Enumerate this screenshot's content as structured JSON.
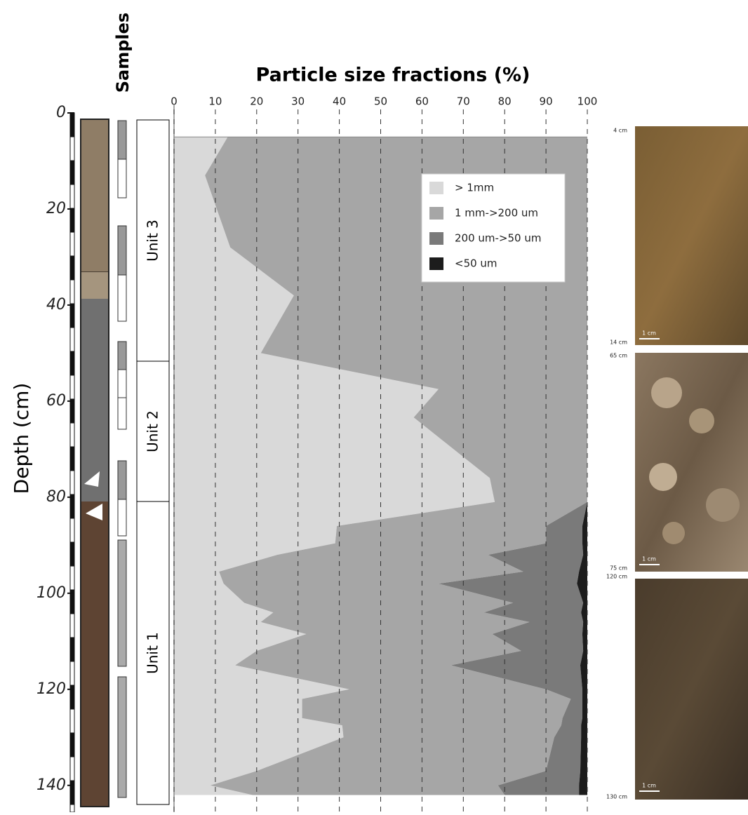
{
  "chart_data": {
    "type": "stacked_area",
    "orientation": "horizontal",
    "title": "Particle size fractions (%)",
    "x_label": "Depth (cm)",
    "samples_label": "Samples",
    "x": [
      5,
      13,
      28,
      38,
      50,
      57.5,
      63.4,
      76,
      81,
      86,
      89.6,
      92,
      95.5,
      98,
      102,
      104,
      106,
      108.5,
      112,
      115,
      120,
      122,
      126,
      127.5,
      130,
      137,
      140,
      142
    ],
    "xlim": [
      0,
      145
    ],
    "xticks": [
      0,
      20,
      40,
      60,
      80,
      100,
      120,
      140
    ],
    "ylim": [
      0,
      100
    ],
    "yticks": [
      0,
      10,
      20,
      30,
      40,
      50,
      60,
      70,
      80,
      90,
      100
    ],
    "grid": true,
    "series": [
      {
        "name": "> 1mm",
        "color": "#d9d9d9",
        "values": [
          13,
          7.5,
          13.6,
          29,
          21,
          64,
          58,
          76.4,
          77.6,
          39.4,
          39,
          25,
          10.9,
          12,
          17,
          24,
          21,
          32,
          20,
          14.8,
          42.4,
          31,
          31,
          40.7,
          41,
          20,
          8.8,
          19
        ]
      },
      {
        "name": "1 mm->200 um",
        "color": "#a6a6a6",
        "values": [
          87,
          92.5,
          86.4,
          71,
          79,
          36,
          42,
          23.6,
          22.4,
          50.6,
          51,
          51,
          73.6,
          52,
          65,
          51,
          65,
          45,
          64,
          52.2,
          47.6,
          65,
          63,
          53,
          51,
          70,
          69.6,
          61
        ]
      },
      {
        "name": "200 um->50 um",
        "color": "#7a7a7a",
        "values": [
          0,
          0,
          0,
          0,
          0,
          0,
          0,
          0,
          0,
          8.8,
          8.8,
          23,
          13.5,
          33.5,
          17,
          23.5,
          13,
          21.8,
          15,
          31.3,
          8.8,
          2.8,
          4.8,
          4.8,
          6.5,
          8.3,
          19.6,
          18
        ]
      },
      {
        "name": "<50 um",
        "color": "#1c1c1c",
        "values": [
          0,
          0,
          0,
          0,
          0,
          0,
          0,
          0,
          0,
          1.2,
          1.2,
          1,
          2,
          2.5,
          1,
          1.5,
          1,
          1.2,
          1,
          1.7,
          1.2,
          1.2,
          1.2,
          1.5,
          1.5,
          1.7,
          2,
          2
        ]
      }
    ],
    "units": [
      "Unit 3",
      "Unit 2",
      "Unit 1"
    ]
  },
  "photos": [
    {
      "top": "4 cm",
      "bottom": "14 cm",
      "scale": "1 cm"
    },
    {
      "top": "65 cm",
      "bottom": "75 cm",
      "scale": "1 cm"
    },
    {
      "top": "120 cm",
      "bottom": "130 cm",
      "scale": "1 cm"
    }
  ]
}
